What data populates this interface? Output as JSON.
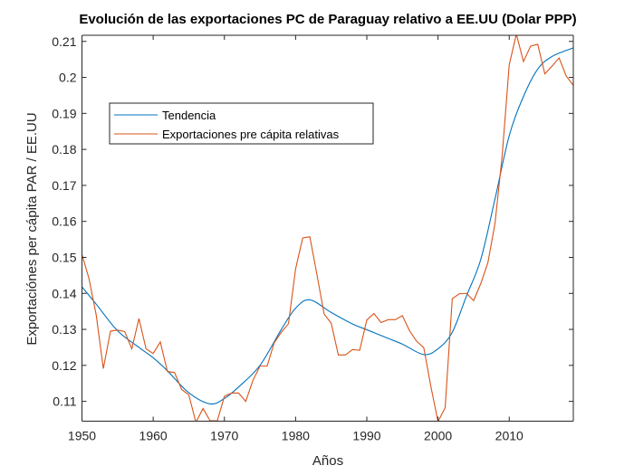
{
  "chart_data": {
    "type": "line",
    "title": "Evolución de las exportaciones PC de Paraguay relativo a EE.UU (Dolar PPP)",
    "xlabel": "Años",
    "ylabel": "Exportaciónes per cápita PAR / EE.UU",
    "xlim": [
      1950,
      2019
    ],
    "ylim": [
      0.1045,
      0.2117
    ],
    "xticks": [
      1950,
      1960,
      1970,
      1980,
      1990,
      2000,
      2010
    ],
    "xtick_labels": [
      "1950",
      "1960",
      "1970",
      "1980",
      "1990",
      "2000",
      "2010"
    ],
    "yticks": [
      0.11,
      0.12,
      0.13,
      0.14,
      0.15,
      0.16,
      0.17,
      0.18,
      0.19,
      0.2,
      0.21
    ],
    "ytick_labels": [
      "0.11",
      "0.12",
      "0.13",
      "0.14",
      "0.15",
      "0.16",
      "0.17",
      "0.18",
      "0.19",
      "0.2",
      "0.21"
    ],
    "grid": false,
    "legend_position": "upper-left",
    "series": [
      {
        "name": "Tendencia",
        "color": "#0072BD",
        "x": [
          1950,
          1952,
          1955,
          1958,
          1960,
          1962,
          1965,
          1968,
          1970,
          1972,
          1975,
          1978,
          1980,
          1982,
          1985,
          1988,
          1990,
          1993,
          1995,
          1998,
          2000,
          2002,
          2004,
          2006,
          2008,
          2010,
          2012,
          2014,
          2016,
          2019
        ],
        "values": [
          0.1418,
          0.137,
          0.1296,
          0.125,
          0.1221,
          0.1185,
          0.1124,
          0.1093,
          0.1108,
          0.114,
          0.12,
          0.13,
          0.1359,
          0.1382,
          0.1347,
          0.1315,
          0.1299,
          0.1275,
          0.1259,
          0.123,
          0.1246,
          0.1292,
          0.1393,
          0.1494,
          0.1662,
          0.1838,
          0.1947,
          0.2023,
          0.2058,
          0.2082
        ]
      },
      {
        "name": "Exportaciones pre cápita relativas",
        "color": "#D95319",
        "x": [
          1950,
          1951,
          1952,
          1953,
          1954,
          1955,
          1956,
          1957,
          1958,
          1959,
          1960,
          1961,
          1962,
          1963,
          1964,
          1965,
          1966,
          1967,
          1968,
          1969,
          1970,
          1971,
          1972,
          1973,
          1974,
          1975,
          1976,
          1977,
          1978,
          1979,
          1980,
          1981,
          1982,
          1983,
          1984,
          1985,
          1986,
          1987,
          1988,
          1989,
          1990,
          1991,
          1992,
          1993,
          1994,
          1995,
          1996,
          1997,
          1998,
          1999,
          2000,
          2001,
          2002,
          2003,
          2004,
          2005,
          2006,
          2007,
          2008,
          2009,
          2010,
          2011,
          2012,
          2013,
          2014,
          2015,
          2016,
          2017,
          2018,
          2019
        ],
        "values": [
          0.1508,
          0.144,
          0.134,
          0.1191,
          0.1295,
          0.1298,
          0.1294,
          0.1246,
          0.133,
          0.1246,
          0.1233,
          0.1265,
          0.1183,
          0.118,
          0.1133,
          0.1118,
          0.1042,
          0.108,
          0.1046,
          0.1046,
          0.1114,
          0.1123,
          0.1123,
          0.11,
          0.1158,
          0.1198,
          0.1198,
          0.1263,
          0.1292,
          0.1316,
          0.1468,
          0.1554,
          0.1557,
          0.1452,
          0.1343,
          0.1317,
          0.1229,
          0.1229,
          0.1244,
          0.1242,
          0.1326,
          0.1344,
          0.1319,
          0.1327,
          0.1327,
          0.1338,
          0.1296,
          0.1267,
          0.1249,
          0.1141,
          0.1044,
          0.1082,
          0.1385,
          0.1399,
          0.14,
          0.138,
          0.1427,
          0.1485,
          0.1594,
          0.178,
          0.2035,
          0.212,
          0.2044,
          0.2087,
          0.2092,
          0.201,
          0.2031,
          0.2054,
          0.2004,
          0.1978
        ]
      }
    ]
  }
}
